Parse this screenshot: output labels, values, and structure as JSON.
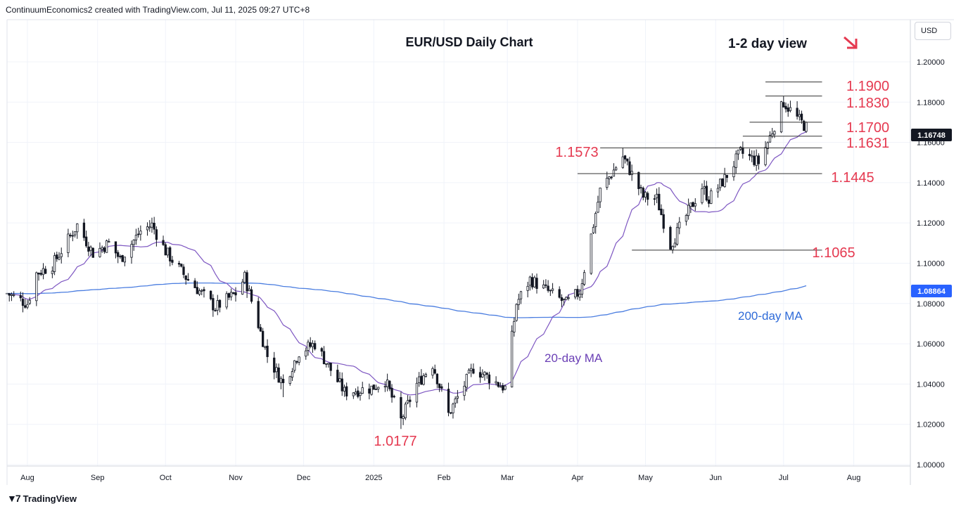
{
  "header": {
    "credit": "ContinuumEconomics2 created with TradingView.com, Jul 11, 2025 09:27 UTC+8",
    "currency_button": "USD"
  },
  "footer": {
    "brand": "TradingView",
    "logo_icon": "tradingview-logo-icon"
  },
  "colors": {
    "up": "#26a69a",
    "down": "#ef5350",
    "candle": "#131722",
    "ma20": "#7e57c2",
    "ma200": "#4a7de0",
    "level": "#e53950",
    "price_badge": "#131722",
    "ma200_badge": "#2962ff"
  },
  "chart_data": {
    "type": "candlestick",
    "title": "EUR/USD Daily Chart",
    "view_label": "1-2 day view",
    "view_direction": "down",
    "ylim": [
      1.0,
      1.215
    ],
    "y_ticks": [
      "1.20000",
      "1.18000",
      "1.16000",
      "1.14000",
      "1.12000",
      "1.10000",
      "1.08000",
      "1.06000",
      "1.04000",
      "1.02000",
      "1.00000"
    ],
    "x_ticks": [
      "Aug",
      "Sep",
      "Oct",
      "Nov",
      "Dec",
      "2025",
      "Feb",
      "Mar",
      "Apr",
      "May",
      "Jun",
      "Jul",
      "Aug"
    ],
    "x_range": [
      "2024-07-23",
      "2025-08-26"
    ],
    "current_price": "1.16748",
    "ma200_value": "1.08864",
    "levels": [
      {
        "label": "1.1900",
        "value": 1.19,
        "from": "2025-06-23",
        "to": "2025-07-18"
      },
      {
        "label": "1.1830",
        "value": 1.183,
        "from": "2025-06-23",
        "to": "2025-07-18"
      },
      {
        "label": "1.1700",
        "value": 1.17,
        "from": "2025-06-16",
        "to": "2025-07-18"
      },
      {
        "label": "1.1631",
        "value": 1.1631,
        "from": "2025-06-13",
        "to": "2025-07-18"
      },
      {
        "label": "1.1573",
        "value": 1.1573,
        "from": "2025-04-11",
        "to": "2025-07-18"
      },
      {
        "label": "1.1445",
        "value": 1.1445,
        "from": "2025-04-01",
        "to": "2025-07-18"
      },
      {
        "label": "1.1065",
        "value": 1.1065,
        "from": "2025-04-25",
        "to": "2025-07-18"
      }
    ],
    "annotations": [
      {
        "text": "1.0177",
        "date": "2025-01-13",
        "value": 1.0177
      },
      {
        "text": "20-day MA"
      },
      {
        "text": "200-day MA"
      }
    ],
    "anchors": [
      [
        "2024-07-23",
        1.085
      ],
      [
        "2024-08-01",
        1.08
      ],
      [
        "2024-08-05",
        1.095
      ],
      [
        "2024-08-12",
        1.099
      ],
      [
        "2024-08-23",
        1.119
      ],
      [
        "2024-08-30",
        1.105
      ],
      [
        "2024-09-06",
        1.11
      ],
      [
        "2024-09-11",
        1.102
      ],
      [
        "2024-09-20",
        1.116
      ],
      [
        "2024-09-25",
        1.119
      ],
      [
        "2024-10-01",
        1.106
      ],
      [
        "2024-10-10",
        1.093
      ],
      [
        "2024-10-23",
        1.078
      ],
      [
        "2024-11-01",
        1.085
      ],
      [
        "2024-11-05",
        1.093
      ],
      [
        "2024-11-15",
        1.054
      ],
      [
        "2024-11-22",
        1.04
      ],
      [
        "2024-11-29",
        1.056
      ],
      [
        "2024-12-06",
        1.06
      ],
      [
        "2024-12-19",
        1.036
      ],
      [
        "2024-12-31",
        1.038
      ],
      [
        "2025-01-06",
        1.042
      ],
      [
        "2025-01-13",
        1.022
      ],
      [
        "2025-01-20",
        1.04
      ],
      [
        "2025-01-27",
        1.05
      ],
      [
        "2025-02-03",
        1.025
      ],
      [
        "2025-02-14",
        1.048
      ],
      [
        "2025-02-28",
        1.038
      ],
      [
        "2025-03-05",
        1.08
      ],
      [
        "2025-03-11",
        1.092
      ],
      [
        "2025-03-27",
        1.08
      ],
      [
        "2025-04-02",
        1.086
      ],
      [
        "2025-04-11",
        1.136
      ],
      [
        "2025-04-21",
        1.153
      ],
      [
        "2025-04-30",
        1.133
      ],
      [
        "2025-05-06",
        1.132
      ],
      [
        "2025-05-12",
        1.109
      ],
      [
        "2025-05-26",
        1.138
      ],
      [
        "2025-05-29",
        1.132
      ],
      [
        "2025-06-05",
        1.142
      ],
      [
        "2025-06-12",
        1.155
      ],
      [
        "2025-06-20",
        1.15
      ],
      [
        "2025-06-24",
        1.16
      ],
      [
        "2025-07-01",
        1.18
      ],
      [
        "2025-07-07",
        1.172
      ],
      [
        "2025-07-11",
        1.1675
      ]
    ]
  }
}
